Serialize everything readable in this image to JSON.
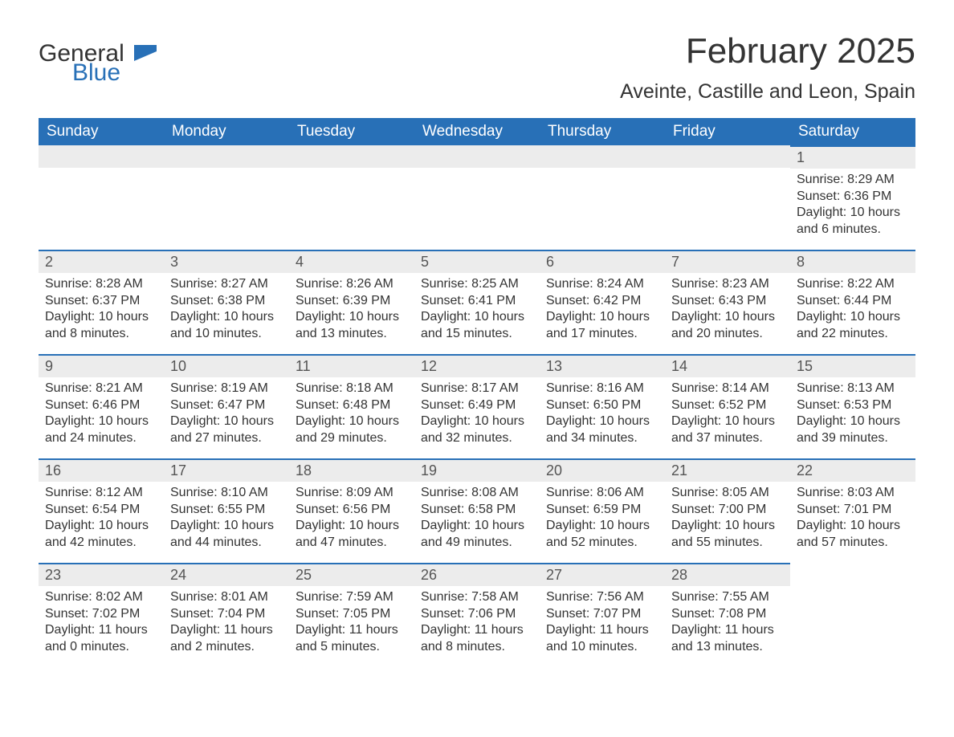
{
  "logo": {
    "general": "General",
    "blue": "Blue"
  },
  "title": "February 2025",
  "location": "Aveinte, Castille and Leon, Spain",
  "colors": {
    "header_bg": "#2870b7",
    "header_fg": "#ffffff",
    "day_head_bg": "#ececec",
    "day_head_border": "#2870b7",
    "text": "#333333",
    "logo_blue": "#2870b7"
  },
  "weekdays": [
    "Sunday",
    "Monday",
    "Tuesday",
    "Wednesday",
    "Thursday",
    "Friday",
    "Saturday"
  ],
  "weeks": [
    [
      null,
      null,
      null,
      null,
      null,
      null,
      {
        "n": "1",
        "sunrise": "Sunrise: 8:29 AM",
        "sunset": "Sunset: 6:36 PM",
        "daylight": "Daylight: 10 hours and 6 minutes."
      }
    ],
    [
      {
        "n": "2",
        "sunrise": "Sunrise: 8:28 AM",
        "sunset": "Sunset: 6:37 PM",
        "daylight": "Daylight: 10 hours and 8 minutes."
      },
      {
        "n": "3",
        "sunrise": "Sunrise: 8:27 AM",
        "sunset": "Sunset: 6:38 PM",
        "daylight": "Daylight: 10 hours and 10 minutes."
      },
      {
        "n": "4",
        "sunrise": "Sunrise: 8:26 AM",
        "sunset": "Sunset: 6:39 PM",
        "daylight": "Daylight: 10 hours and 13 minutes."
      },
      {
        "n": "5",
        "sunrise": "Sunrise: 8:25 AM",
        "sunset": "Sunset: 6:41 PM",
        "daylight": "Daylight: 10 hours and 15 minutes."
      },
      {
        "n": "6",
        "sunrise": "Sunrise: 8:24 AM",
        "sunset": "Sunset: 6:42 PM",
        "daylight": "Daylight: 10 hours and 17 minutes."
      },
      {
        "n": "7",
        "sunrise": "Sunrise: 8:23 AM",
        "sunset": "Sunset: 6:43 PM",
        "daylight": "Daylight: 10 hours and 20 minutes."
      },
      {
        "n": "8",
        "sunrise": "Sunrise: 8:22 AM",
        "sunset": "Sunset: 6:44 PM",
        "daylight": "Daylight: 10 hours and 22 minutes."
      }
    ],
    [
      {
        "n": "9",
        "sunrise": "Sunrise: 8:21 AM",
        "sunset": "Sunset: 6:46 PM",
        "daylight": "Daylight: 10 hours and 24 minutes."
      },
      {
        "n": "10",
        "sunrise": "Sunrise: 8:19 AM",
        "sunset": "Sunset: 6:47 PM",
        "daylight": "Daylight: 10 hours and 27 minutes."
      },
      {
        "n": "11",
        "sunrise": "Sunrise: 8:18 AM",
        "sunset": "Sunset: 6:48 PM",
        "daylight": "Daylight: 10 hours and 29 minutes."
      },
      {
        "n": "12",
        "sunrise": "Sunrise: 8:17 AM",
        "sunset": "Sunset: 6:49 PM",
        "daylight": "Daylight: 10 hours and 32 minutes."
      },
      {
        "n": "13",
        "sunrise": "Sunrise: 8:16 AM",
        "sunset": "Sunset: 6:50 PM",
        "daylight": "Daylight: 10 hours and 34 minutes."
      },
      {
        "n": "14",
        "sunrise": "Sunrise: 8:14 AM",
        "sunset": "Sunset: 6:52 PM",
        "daylight": "Daylight: 10 hours and 37 minutes."
      },
      {
        "n": "15",
        "sunrise": "Sunrise: 8:13 AM",
        "sunset": "Sunset: 6:53 PM",
        "daylight": "Daylight: 10 hours and 39 minutes."
      }
    ],
    [
      {
        "n": "16",
        "sunrise": "Sunrise: 8:12 AM",
        "sunset": "Sunset: 6:54 PM",
        "daylight": "Daylight: 10 hours and 42 minutes."
      },
      {
        "n": "17",
        "sunrise": "Sunrise: 8:10 AM",
        "sunset": "Sunset: 6:55 PM",
        "daylight": "Daylight: 10 hours and 44 minutes."
      },
      {
        "n": "18",
        "sunrise": "Sunrise: 8:09 AM",
        "sunset": "Sunset: 6:56 PM",
        "daylight": "Daylight: 10 hours and 47 minutes."
      },
      {
        "n": "19",
        "sunrise": "Sunrise: 8:08 AM",
        "sunset": "Sunset: 6:58 PM",
        "daylight": "Daylight: 10 hours and 49 minutes."
      },
      {
        "n": "20",
        "sunrise": "Sunrise: 8:06 AM",
        "sunset": "Sunset: 6:59 PM",
        "daylight": "Daylight: 10 hours and 52 minutes."
      },
      {
        "n": "21",
        "sunrise": "Sunrise: 8:05 AM",
        "sunset": "Sunset: 7:00 PM",
        "daylight": "Daylight: 10 hours and 55 minutes."
      },
      {
        "n": "22",
        "sunrise": "Sunrise: 8:03 AM",
        "sunset": "Sunset: 7:01 PM",
        "daylight": "Daylight: 10 hours and 57 minutes."
      }
    ],
    [
      {
        "n": "23",
        "sunrise": "Sunrise: 8:02 AM",
        "sunset": "Sunset: 7:02 PM",
        "daylight": "Daylight: 11 hours and 0 minutes."
      },
      {
        "n": "24",
        "sunrise": "Sunrise: 8:01 AM",
        "sunset": "Sunset: 7:04 PM",
        "daylight": "Daylight: 11 hours and 2 minutes."
      },
      {
        "n": "25",
        "sunrise": "Sunrise: 7:59 AM",
        "sunset": "Sunset: 7:05 PM",
        "daylight": "Daylight: 11 hours and 5 minutes."
      },
      {
        "n": "26",
        "sunrise": "Sunrise: 7:58 AM",
        "sunset": "Sunset: 7:06 PM",
        "daylight": "Daylight: 11 hours and 8 minutes."
      },
      {
        "n": "27",
        "sunrise": "Sunrise: 7:56 AM",
        "sunset": "Sunset: 7:07 PM",
        "daylight": "Daylight: 11 hours and 10 minutes."
      },
      {
        "n": "28",
        "sunrise": "Sunrise: 7:55 AM",
        "sunset": "Sunset: 7:08 PM",
        "daylight": "Daylight: 11 hours and 13 minutes."
      },
      null
    ]
  ]
}
